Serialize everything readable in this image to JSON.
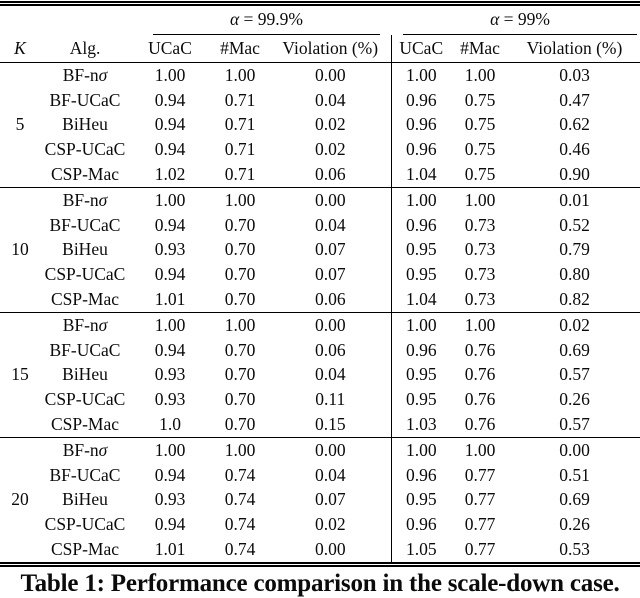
{
  "colors": {
    "background": "#ffffff",
    "text": "#0b0b0b",
    "rule": "#000000"
  },
  "header": {
    "k": "K",
    "alg": "Alg.",
    "groups": [
      {
        "label": "α = 99.9%",
        "cols": [
          "UCaC",
          "#Mac",
          "Violation (%)"
        ]
      },
      {
        "label": "α = 99%",
        "cols": [
          "UCaC",
          "#Mac",
          "Violation (%)"
        ]
      }
    ]
  },
  "blocks": [
    {
      "k": "5",
      "rows": [
        {
          "alg": "BF-nσ",
          "values": [
            "1.00",
            "1.00",
            "0.00",
            "1.00",
            "1.00",
            "0.03"
          ]
        },
        {
          "alg": "BF-UCaC",
          "values": [
            "0.94",
            "0.71",
            "0.04",
            "0.96",
            "0.75",
            "0.47"
          ]
        },
        {
          "alg": "BiHeu",
          "values": [
            "0.94",
            "0.71",
            "0.02",
            "0.96",
            "0.75",
            "0.62"
          ]
        },
        {
          "alg": "CSP-UCaC",
          "values": [
            "0.94",
            "0.71",
            "0.02",
            "0.96",
            "0.75",
            "0.46"
          ]
        },
        {
          "alg": "CSP-Mac",
          "values": [
            "1.02",
            "0.71",
            "0.06",
            "1.04",
            "0.75",
            "0.90"
          ]
        }
      ]
    },
    {
      "k": "10",
      "rows": [
        {
          "alg": "BF-nσ",
          "values": [
            "1.00",
            "1.00",
            "0.00",
            "1.00",
            "1.00",
            "0.01"
          ]
        },
        {
          "alg": "BF-UCaC",
          "values": [
            "0.94",
            "0.70",
            "0.04",
            "0.96",
            "0.73",
            "0.52"
          ]
        },
        {
          "alg": "BiHeu",
          "values": [
            "0.93",
            "0.70",
            "0.07",
            "0.95",
            "0.73",
            "0.79"
          ]
        },
        {
          "alg": "CSP-UCaC",
          "values": [
            "0.94",
            "0.70",
            "0.07",
            "0.95",
            "0.73",
            "0.80"
          ]
        },
        {
          "alg": "CSP-Mac",
          "values": [
            "1.01",
            "0.70",
            "0.06",
            "1.04",
            "0.73",
            "0.82"
          ]
        }
      ]
    },
    {
      "k": "15",
      "rows": [
        {
          "alg": "BF-nσ",
          "values": [
            "1.00",
            "1.00",
            "0.00",
            "1.00",
            "1.00",
            "0.02"
          ]
        },
        {
          "alg": "BF-UCaC",
          "values": [
            "0.94",
            "0.70",
            "0.06",
            "0.96",
            "0.76",
            "0.69"
          ]
        },
        {
          "alg": "BiHeu",
          "values": [
            "0.93",
            "0.70",
            "0.04",
            "0.95",
            "0.76",
            "0.57"
          ]
        },
        {
          "alg": "CSP-UCaC",
          "values": [
            "0.93",
            "0.70",
            "0.11",
            "0.95",
            "0.76",
            "0.26"
          ]
        },
        {
          "alg": "CSP-Mac",
          "values": [
            "1.0",
            "0.70",
            "0.15",
            "1.03",
            "0.76",
            "0.57"
          ]
        }
      ]
    },
    {
      "k": "20",
      "rows": [
        {
          "alg": "BF-nσ",
          "values": [
            "1.00",
            "1.00",
            "0.00",
            "1.00",
            "1.00",
            "0.00"
          ]
        },
        {
          "alg": "BF-UCaC",
          "values": [
            "0.94",
            "0.74",
            "0.04",
            "0.96",
            "0.77",
            "0.51"
          ]
        },
        {
          "alg": "BiHeu",
          "values": [
            "0.93",
            "0.74",
            "0.07",
            "0.95",
            "0.77",
            "0.69"
          ]
        },
        {
          "alg": "CSP-UCaC",
          "values": [
            "0.94",
            "0.74",
            "0.02",
            "0.96",
            "0.77",
            "0.26"
          ]
        },
        {
          "alg": "CSP-Mac",
          "values": [
            "1.01",
            "0.74",
            "0.00",
            "1.05",
            "0.77",
            "0.53"
          ]
        }
      ]
    }
  ],
  "caption": "Table 1: Performance comparison in the scale-down case."
}
